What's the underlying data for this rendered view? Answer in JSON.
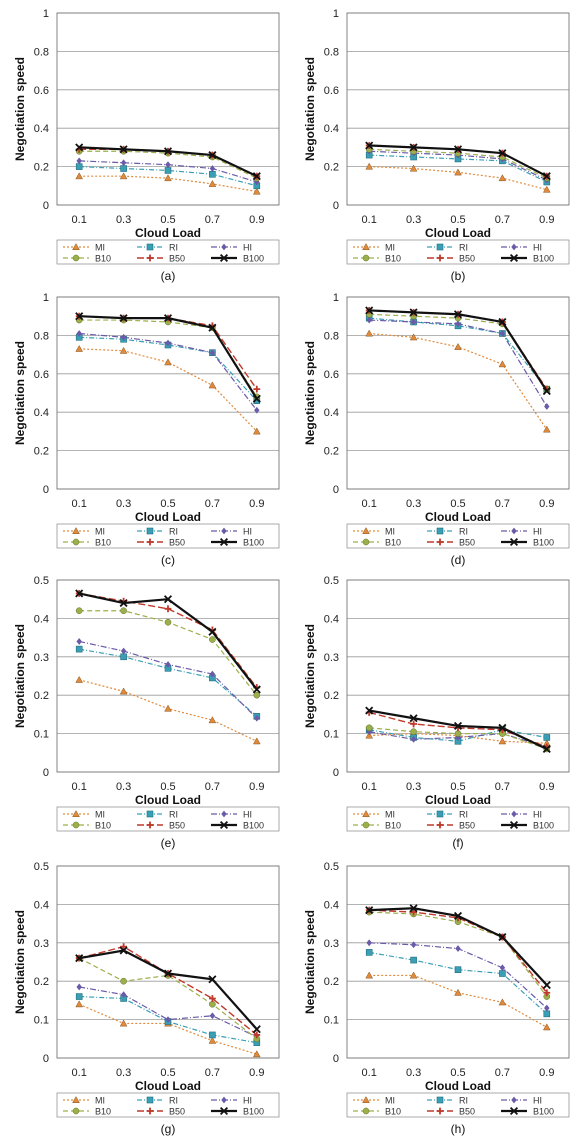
{
  "series_styles": [
    {
      "name": "MI",
      "color": "#e08a3c",
      "dash": "2,2",
      "marker": "triangle",
      "width": 1.2
    },
    {
      "name": "RI",
      "color": "#3a9fb5",
      "dash": "5,2,1,2",
      "marker": "square",
      "width": 1.2
    },
    {
      "name": "HI",
      "color": "#6a5aa8",
      "dash": "6,2,1,2",
      "marker": "diamond",
      "width": 1.2
    },
    {
      "name": "B10",
      "color": "#9bb04a",
      "dash": "5,3",
      "marker": "circle",
      "width": 1.2
    },
    {
      "name": "B50",
      "color": "#c0392b",
      "dash": "7,3",
      "marker": "plus",
      "width": 1.4
    },
    {
      "name": "B100",
      "color": "#111111",
      "dash": "",
      "marker": "x",
      "width": 2.2
    }
  ],
  "chart_data": [
    {
      "type": "line",
      "caption": "(a)",
      "xlabel": "Cloud Load",
      "ylabel": "Negotiation speed",
      "categories": [
        "0.1",
        "0.3",
        "0.5",
        "0.7",
        "0.9"
      ],
      "ylim": [
        0,
        1
      ],
      "yticks": [
        "0",
        "0.2",
        "0.4",
        "0.6",
        "0.8",
        "1"
      ],
      "grid": true,
      "legend": "bottom",
      "series": [
        {
          "name": "MI",
          "values": [
            0.15,
            0.15,
            0.14,
            0.11,
            0.07
          ]
        },
        {
          "name": "RI",
          "values": [
            0.2,
            0.19,
            0.18,
            0.16,
            0.1
          ]
        },
        {
          "name": "HI",
          "values": [
            0.23,
            0.22,
            0.21,
            0.19,
            0.12
          ]
        },
        {
          "name": "B10",
          "values": [
            0.28,
            0.28,
            0.27,
            0.25,
            0.14
          ]
        },
        {
          "name": "B50",
          "values": [
            0.29,
            0.29,
            0.28,
            0.26,
            0.15
          ]
        },
        {
          "name": "B100",
          "values": [
            0.3,
            0.29,
            0.28,
            0.26,
            0.15
          ]
        }
      ]
    },
    {
      "type": "line",
      "caption": "(b)",
      "xlabel": "Cloud Load",
      "ylabel": "Negotiation speed",
      "categories": [
        "0.1",
        "0.3",
        "0.5",
        "0.7",
        "0.9"
      ],
      "ylim": [
        0,
        1
      ],
      "yticks": [
        "0",
        "0.2",
        "0.4",
        "0.6",
        "0.8",
        "1"
      ],
      "grid": true,
      "legend": "bottom",
      "series": [
        {
          "name": "MI",
          "values": [
            0.2,
            0.19,
            0.17,
            0.14,
            0.08
          ]
        },
        {
          "name": "RI",
          "values": [
            0.26,
            0.25,
            0.24,
            0.23,
            0.12
          ]
        },
        {
          "name": "HI",
          "values": [
            0.28,
            0.27,
            0.26,
            0.24,
            0.13
          ]
        },
        {
          "name": "B10",
          "values": [
            0.29,
            0.28,
            0.27,
            0.25,
            0.14
          ]
        },
        {
          "name": "B50",
          "values": [
            0.31,
            0.3,
            0.29,
            0.27,
            0.15
          ]
        },
        {
          "name": "B100",
          "values": [
            0.31,
            0.3,
            0.29,
            0.27,
            0.15
          ]
        }
      ]
    },
    {
      "type": "line",
      "caption": "(c)",
      "xlabel": "Cloud Load",
      "ylabel": "Negotiation speed",
      "categories": [
        "0.1",
        "0.3",
        "0.5",
        "0.7",
        "0.9"
      ],
      "ylim": [
        0,
        1
      ],
      "yticks": [
        "0",
        "0.2",
        "0.4",
        "0.6",
        "0.8",
        "1"
      ],
      "grid": true,
      "legend": "bottom",
      "series": [
        {
          "name": "MI",
          "values": [
            0.73,
            0.72,
            0.66,
            0.54,
            0.3
          ]
        },
        {
          "name": "RI",
          "values": [
            0.79,
            0.78,
            0.75,
            0.71,
            0.46
          ]
        },
        {
          "name": "HI",
          "values": [
            0.81,
            0.79,
            0.76,
            0.71,
            0.41
          ]
        },
        {
          "name": "B10",
          "values": [
            0.88,
            0.88,
            0.87,
            0.84,
            0.48
          ]
        },
        {
          "name": "B50",
          "values": [
            0.9,
            0.89,
            0.89,
            0.85,
            0.52
          ]
        },
        {
          "name": "B100",
          "values": [
            0.9,
            0.89,
            0.89,
            0.84,
            0.47
          ]
        }
      ]
    },
    {
      "type": "line",
      "caption": "(d)",
      "xlabel": "Cloud Load",
      "ylabel": "Negotiation speed",
      "categories": [
        "0.1",
        "0.3",
        "0.5",
        "0.7",
        "0.9"
      ],
      "ylim": [
        0,
        1
      ],
      "yticks": [
        "0",
        "0.2",
        "0.4",
        "0.6",
        "0.8",
        "1"
      ],
      "grid": true,
      "legend": "bottom",
      "series": [
        {
          "name": "MI",
          "values": [
            0.81,
            0.79,
            0.74,
            0.65,
            0.31
          ]
        },
        {
          "name": "RI",
          "values": [
            0.89,
            0.87,
            0.85,
            0.81,
            0.52
          ]
        },
        {
          "name": "HI",
          "values": [
            0.88,
            0.87,
            0.86,
            0.81,
            0.43
          ]
        },
        {
          "name": "B10",
          "values": [
            0.91,
            0.9,
            0.89,
            0.86,
            0.52
          ]
        },
        {
          "name": "B50",
          "values": [
            0.93,
            0.92,
            0.91,
            0.87,
            0.52
          ]
        },
        {
          "name": "B100",
          "values": [
            0.93,
            0.92,
            0.91,
            0.87,
            0.51
          ]
        }
      ]
    },
    {
      "type": "line",
      "caption": "(e)",
      "xlabel": "Cloud Load",
      "ylabel": "Negotiation speed",
      "categories": [
        "0.1",
        "0.3",
        "0.5",
        "0.7",
        "0.9"
      ],
      "ylim": [
        0,
        0.5
      ],
      "yticks": [
        "0",
        "0.1",
        "0.2",
        "0.3",
        "0.4",
        "0.5"
      ],
      "grid": true,
      "legend": "bottom",
      "series": [
        {
          "name": "MI",
          "values": [
            0.24,
            0.21,
            0.165,
            0.135,
            0.08
          ]
        },
        {
          "name": "RI",
          "values": [
            0.32,
            0.3,
            0.27,
            0.245,
            0.145
          ]
        },
        {
          "name": "HI",
          "values": [
            0.34,
            0.315,
            0.28,
            0.255,
            0.14
          ]
        },
        {
          "name": "B10",
          "values": [
            0.42,
            0.42,
            0.39,
            0.345,
            0.2
          ]
        },
        {
          "name": "B50",
          "values": [
            0.465,
            0.445,
            0.425,
            0.37,
            0.22
          ]
        },
        {
          "name": "B100",
          "values": [
            0.465,
            0.44,
            0.45,
            0.365,
            0.215
          ]
        }
      ]
    },
    {
      "type": "line",
      "caption": "(f)",
      "xlabel": "Cloud Load",
      "ylabel": "Negotiation speed",
      "categories": [
        "0.1",
        "0.3",
        "0.5",
        "0.7",
        "0.9"
      ],
      "ylim": [
        0,
        0.5
      ],
      "yticks": [
        "0",
        "0.1",
        "0.2",
        "0.3",
        "0.4",
        "0.5"
      ],
      "grid": true,
      "legend": "bottom",
      "series": [
        {
          "name": "MI",
          "values": [
            0.095,
            0.1,
            0.095,
            0.08,
            0.075
          ]
        },
        {
          "name": "RI",
          "values": [
            0.11,
            0.09,
            0.08,
            0.11,
            0.09
          ]
        },
        {
          "name": "HI",
          "values": [
            0.105,
            0.085,
            0.09,
            0.1,
            0.065
          ]
        },
        {
          "name": "B10",
          "values": [
            0.115,
            0.105,
            0.1,
            0.1,
            0.06
          ]
        },
        {
          "name": "B50",
          "values": [
            0.155,
            0.125,
            0.115,
            0.11,
            0.065
          ]
        },
        {
          "name": "B100",
          "values": [
            0.16,
            0.14,
            0.12,
            0.115,
            0.06
          ]
        }
      ]
    },
    {
      "type": "line",
      "caption": "(g)",
      "xlabel": "Cloud Load",
      "ylabel": "Negotiation speed",
      "categories": [
        "0.1",
        "0.3",
        "0.5",
        "0.7",
        "0.9"
      ],
      "ylim": [
        0,
        0.5
      ],
      "yticks": [
        "0",
        "0.1",
        "0.2",
        "0.3",
        "0.4",
        "0.5"
      ],
      "grid": true,
      "legend": "bottom",
      "series": [
        {
          "name": "MI",
          "values": [
            0.14,
            0.09,
            0.09,
            0.045,
            0.01
          ]
        },
        {
          "name": "RI",
          "values": [
            0.16,
            0.155,
            0.095,
            0.06,
            0.04
          ]
        },
        {
          "name": "HI",
          "values": [
            0.185,
            0.165,
            0.1,
            0.11,
            0.055
          ]
        },
        {
          "name": "B10",
          "values": [
            0.26,
            0.2,
            0.215,
            0.14,
            0.05
          ]
        },
        {
          "name": "B50",
          "values": [
            0.26,
            0.29,
            0.22,
            0.155,
            0.06
          ]
        },
        {
          "name": "B100",
          "values": [
            0.26,
            0.28,
            0.22,
            0.205,
            0.075
          ]
        }
      ]
    },
    {
      "type": "line",
      "caption": "(h)",
      "xlabel": "Cloud Load",
      "ylabel": "Negotiation speed",
      "categories": [
        "0.1",
        "0.3",
        "0.5",
        "0.7",
        "0.9"
      ],
      "ylim": [
        0,
        0.5
      ],
      "yticks": [
        "0",
        "0.1",
        "0.2",
        "0.3",
        "0.4",
        "0.5"
      ],
      "grid": true,
      "legend": "bottom",
      "series": [
        {
          "name": "MI",
          "values": [
            0.215,
            0.215,
            0.17,
            0.145,
            0.08
          ]
        },
        {
          "name": "RI",
          "values": [
            0.275,
            0.255,
            0.23,
            0.22,
            0.115
          ]
        },
        {
          "name": "HI",
          "values": [
            0.3,
            0.295,
            0.285,
            0.235,
            0.13
          ]
        },
        {
          "name": "B10",
          "values": [
            0.38,
            0.375,
            0.355,
            0.315,
            0.16
          ]
        },
        {
          "name": "B50",
          "values": [
            0.385,
            0.38,
            0.365,
            0.315,
            0.17
          ]
        },
        {
          "name": "B100",
          "values": [
            0.385,
            0.39,
            0.37,
            0.315,
            0.19
          ]
        }
      ]
    }
  ]
}
